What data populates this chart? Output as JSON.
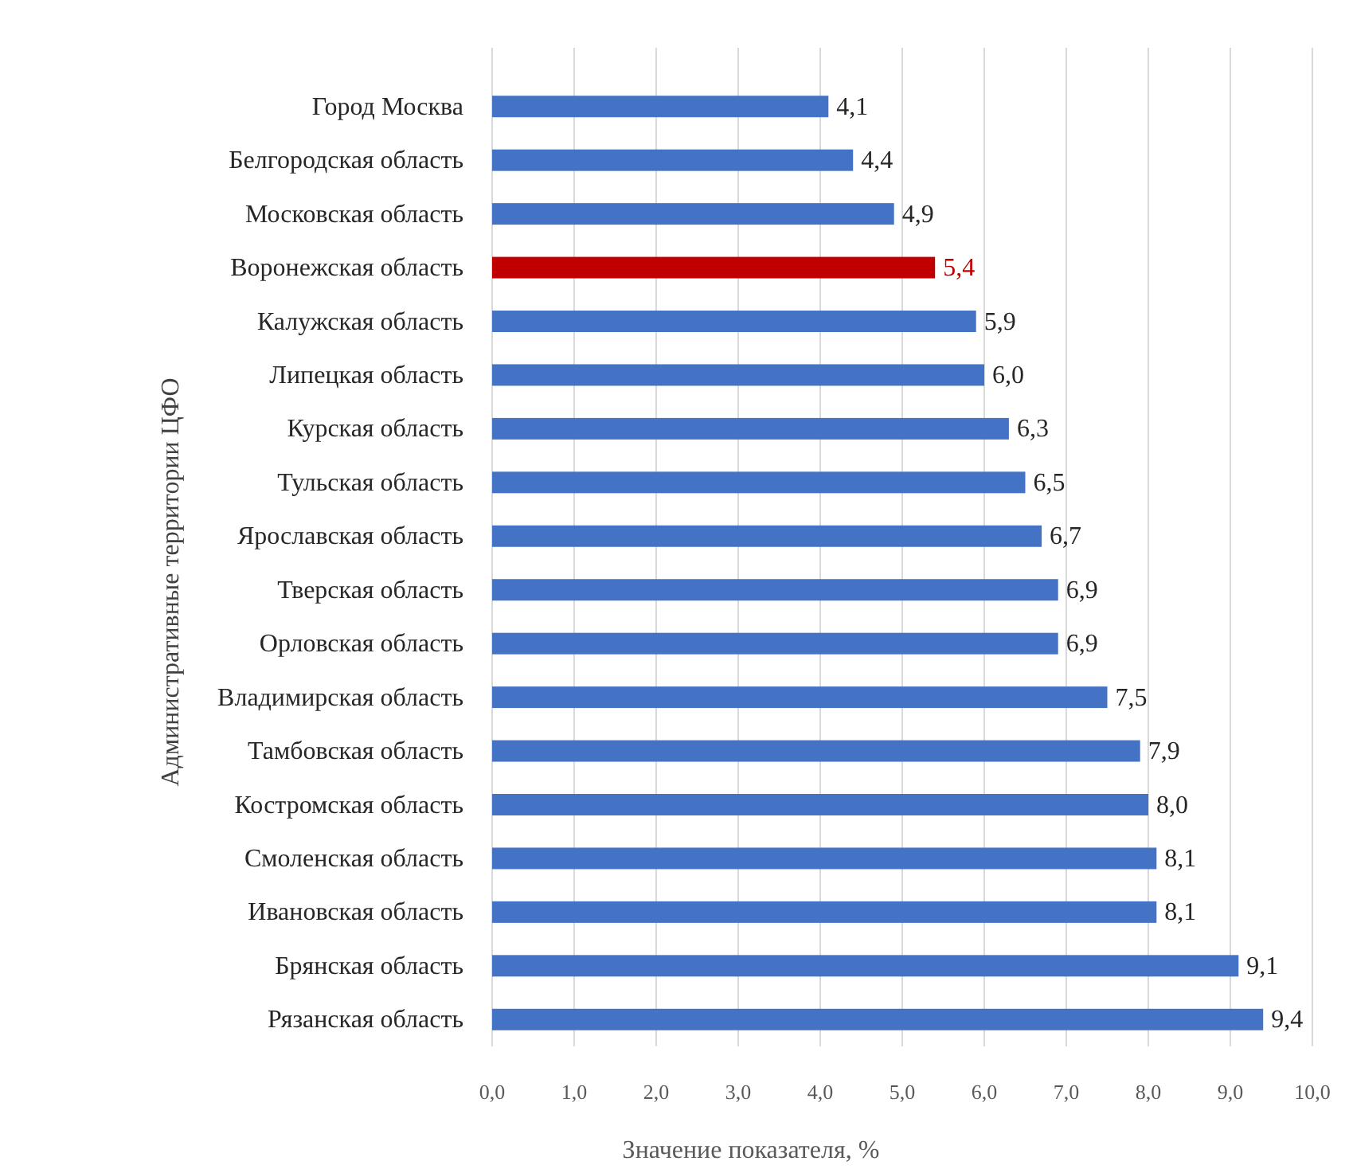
{
  "chart_data": {
    "type": "bar",
    "orientation": "horizontal",
    "xlabel": "Значение показателя, %",
    "ylabel": "Административные  территории ЦФО",
    "categories": [
      "Город Москва",
      "Белгородская область",
      "Московская область",
      "Воронежская область",
      "Калужская область",
      "Липецкая область",
      "Курская область",
      "Тульская область",
      "Ярославская область",
      "Тверская область",
      "Орловская область",
      "Владимирская область",
      "Тамбовская область",
      "Костромская область",
      "Смоленская область",
      "Ивановская область",
      "Брянская область",
      "Рязанская область"
    ],
    "values": [
      4.1,
      4.4,
      4.9,
      5.4,
      5.9,
      6.0,
      6.3,
      6.5,
      6.7,
      6.9,
      6.9,
      7.5,
      7.9,
      8.0,
      8.1,
      8.1,
      9.1,
      9.4
    ],
    "value_labels": [
      "4,1",
      "4,4",
      "4,9",
      "5,4",
      "5,9",
      "6,0",
      "6,3",
      "6,5",
      "6,7",
      "6,9",
      "6,9",
      "7,5",
      "7,9",
      "8,0",
      "8,1",
      "8,1",
      "9,1",
      "9,4"
    ],
    "color": "#4472c4",
    "colors": [
      "#4472c4",
      "#4472c4",
      "#4472c4",
      "#c00000",
      "#4472c4",
      "#4472c4",
      "#4472c4",
      "#4472c4",
      "#4472c4",
      "#4472c4",
      "#4472c4",
      "#4472c4",
      "#4472c4",
      "#4472c4",
      "#4472c4",
      "#4472c4",
      "#4472c4",
      "#4472c4"
    ],
    "xlim": [
      0,
      10
    ],
    "xticks": [
      {
        "value": 0,
        "label": "0,0"
      },
      {
        "value": 1,
        "label": "1,0"
      },
      {
        "value": 2,
        "label": "2,0"
      },
      {
        "value": 3,
        "label": "3,0"
      },
      {
        "value": 4,
        "label": "4,0"
      },
      {
        "value": 5,
        "label": "5,0"
      },
      {
        "value": 6,
        "label": "6,0"
      },
      {
        "value": 7,
        "label": "7,0"
      },
      {
        "value": 8,
        "label": "8,0"
      },
      {
        "value": 9,
        "label": "9,0"
      },
      {
        "value": 10,
        "label": "10,0"
      }
    ],
    "grid": "x"
  }
}
